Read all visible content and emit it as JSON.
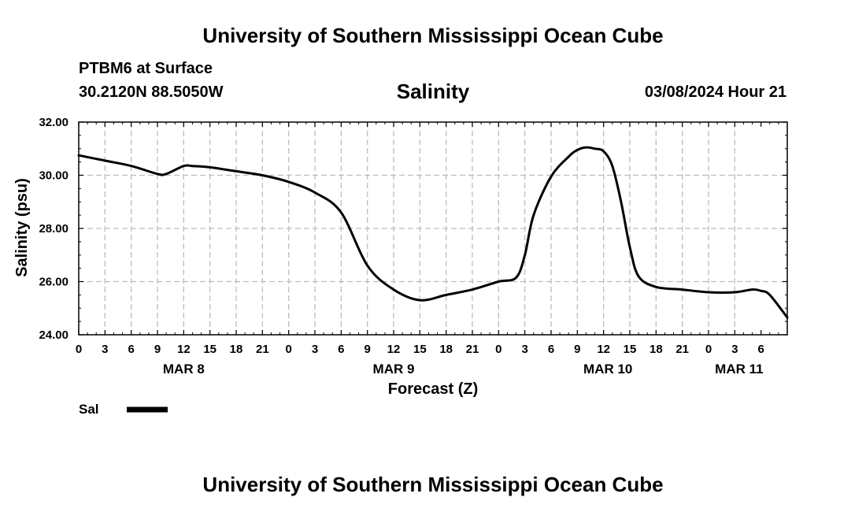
{
  "header": {
    "title": "University of Southern Mississippi Ocean Cube",
    "station": "PTBM6 at Surface",
    "coords": "30.2120N  88.5050W",
    "run_time": "03/08/2024 Hour 21"
  },
  "footer": {
    "title": "University of Southern Mississippi Ocean Cube"
  },
  "chart_data": {
    "type": "line",
    "title": "Salinity",
    "xlabel": "Forecast (Z)",
    "ylabel": "Salinity (psu)",
    "ylim": [
      24,
      32
    ],
    "yticks": [
      "24.00",
      "26.00",
      "28.00",
      "30.00",
      "32.00"
    ],
    "xlim": [
      0,
      81
    ],
    "x_unit": "hours from 03/08/2024 00Z",
    "x_tick_labels": [
      "0",
      "3",
      "6",
      "9",
      "12",
      "15",
      "18",
      "21",
      "0",
      "3",
      "6",
      "9",
      "12",
      "15",
      "18",
      "21",
      "0",
      "3",
      "6",
      "9",
      "12",
      "15",
      "18",
      "21",
      "0",
      "3",
      "6"
    ],
    "day_labels": [
      {
        "label": "MAR 8",
        "hour": 12
      },
      {
        "label": "MAR 9",
        "hour": 36
      },
      {
        "label": "MAR 10",
        "hour": 60.5
      },
      {
        "label": "MAR 11",
        "hour": 75.5
      }
    ],
    "grid": true,
    "legend": "bottom-left",
    "series": [
      {
        "name": "Sal",
        "color": "#000000",
        "x": [
          0,
          3,
          6,
          9,
          10,
          12,
          13,
          15,
          18,
          21,
          24,
          27,
          30,
          33,
          36,
          39,
          42,
          45,
          48,
          50,
          51,
          52,
          54,
          56,
          57,
          58,
          59,
          60,
          61,
          62,
          63,
          64,
          66,
          69,
          72,
          75,
          77,
          78,
          79,
          81
        ],
        "values": [
          30.75,
          30.55,
          30.35,
          30.05,
          30.05,
          30.35,
          30.35,
          30.3,
          30.15,
          30.0,
          29.75,
          29.35,
          28.6,
          26.6,
          25.7,
          25.3,
          25.5,
          25.7,
          26.0,
          26.15,
          27.0,
          28.5,
          29.95,
          30.7,
          30.95,
          31.05,
          31.0,
          30.9,
          30.35,
          29.0,
          27.3,
          26.2,
          25.8,
          25.7,
          25.6,
          25.6,
          25.7,
          25.65,
          25.5,
          24.65
        ]
      }
    ]
  }
}
